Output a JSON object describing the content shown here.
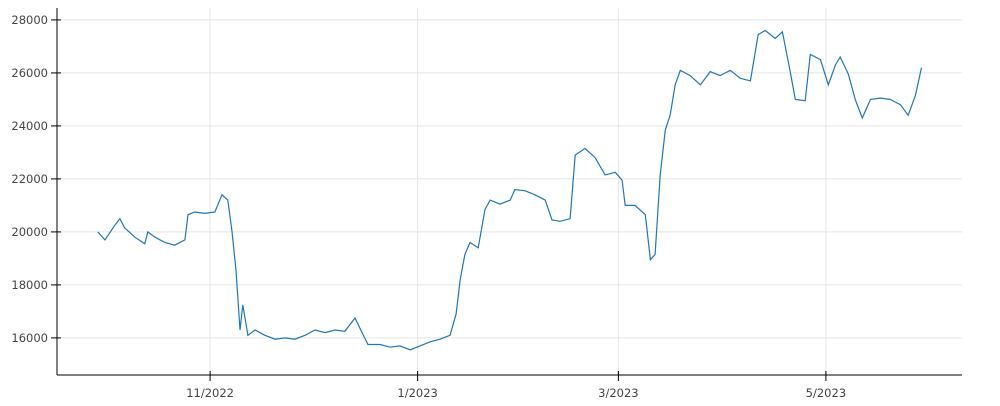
{
  "chart_data": {
    "type": "line",
    "color": "#1f77b4",
    "grid": true,
    "x": [
      0,
      2.1,
      5,
      6.5,
      7.9,
      10.9,
      13.8,
      14.7,
      16.8,
      19.7,
      22.6,
      25.6,
      26.5,
      28.5,
      31.5,
      34.4,
      36.5,
      38.2,
      39.4,
      40.6,
      41.8,
      42.6,
      44.1,
      46.2,
      49.1,
      52.1,
      55,
      57.9,
      60.9,
      63.8,
      66.8,
      69.7,
      72.6,
      75.6,
      77.1,
      79.4,
      82.9,
      85.9,
      88.8,
      91.8,
      94.7,
      97.6,
      100.6,
      103.5,
      105.3,
      106.5,
      107.9,
      109.4,
      111.8,
      113.8,
      115.3,
      118.2,
      121.2,
      122.6,
      125.6,
      128.5,
      131.5,
      133.5,
      135.9,
      138.8,
      140.3,
      143.2,
      146.2,
      149.1,
      152.1,
      154.1,
      155,
      157.9,
      160.9,
      162.4,
      163.8,
      165.3,
      166.8,
      168.2,
      169.7,
      171.2,
      174.1,
      177.1,
      180,
      182.9,
      185.9,
      188.8,
      191.8,
      194.1,
      196.2,
      199.1,
      201.2,
      203.5,
      205,
      207.9,
      209.4,
      212.4,
      214.7,
      216.8,
      218.2,
      220.6,
      222.6,
      224.7,
      227.1,
      230,
      232.9,
      235.9,
      238.2,
      240.3,
      242.1
    ],
    "values": [
      20000,
      19700,
      20250,
      20500,
      20150,
      19800,
      19550,
      20000,
      19800,
      19600,
      19500,
      19700,
      20650,
      20750,
      20700,
      20750,
      21400,
      21200,
      20050,
      18550,
      16300,
      17250,
      16100,
      16300,
      16100,
      15950,
      16000,
      15950,
      16100,
      16300,
      16200,
      16300,
      16250,
      16750,
      16350,
      15750,
      15750,
      15650,
      15700,
      15550,
      15700,
      15850,
      15950,
      16100,
      16900,
      18200,
      19150,
      19600,
      19400,
      20850,
      21200,
      21050,
      21200,
      21600,
      21550,
      21400,
      21200,
      20450,
      20400,
      20500,
      22900,
      23150,
      22800,
      22150,
      22250,
      21950,
      21000,
      21000,
      20650,
      18950,
      19150,
      22150,
      23850,
      24400,
      25550,
      26100,
      25900,
      25550,
      26050,
      25900,
      26100,
      25800,
      25700,
      27450,
      27600,
      27300,
      27550,
      26050,
      25000,
      24950,
      26700,
      26500,
      25550,
      26300,
      26600,
      25950,
      25000,
      24300,
      25000,
      25050,
      25000,
      24800,
      24400,
      25150,
      26200
    ],
    "xlim": [
      -12,
      254
    ],
    "xticks": [
      {
        "value": 33,
        "label": "11/2022"
      },
      {
        "value": 94,
        "label": "1/2023"
      },
      {
        "value": 153,
        "label": "3/2023"
      },
      {
        "value": 214,
        "label": "5/2023"
      }
    ],
    "ylim": [
      14600,
      28450
    ],
    "yticks": [
      16000,
      18000,
      20000,
      22000,
      24000,
      26000,
      28000
    ]
  }
}
